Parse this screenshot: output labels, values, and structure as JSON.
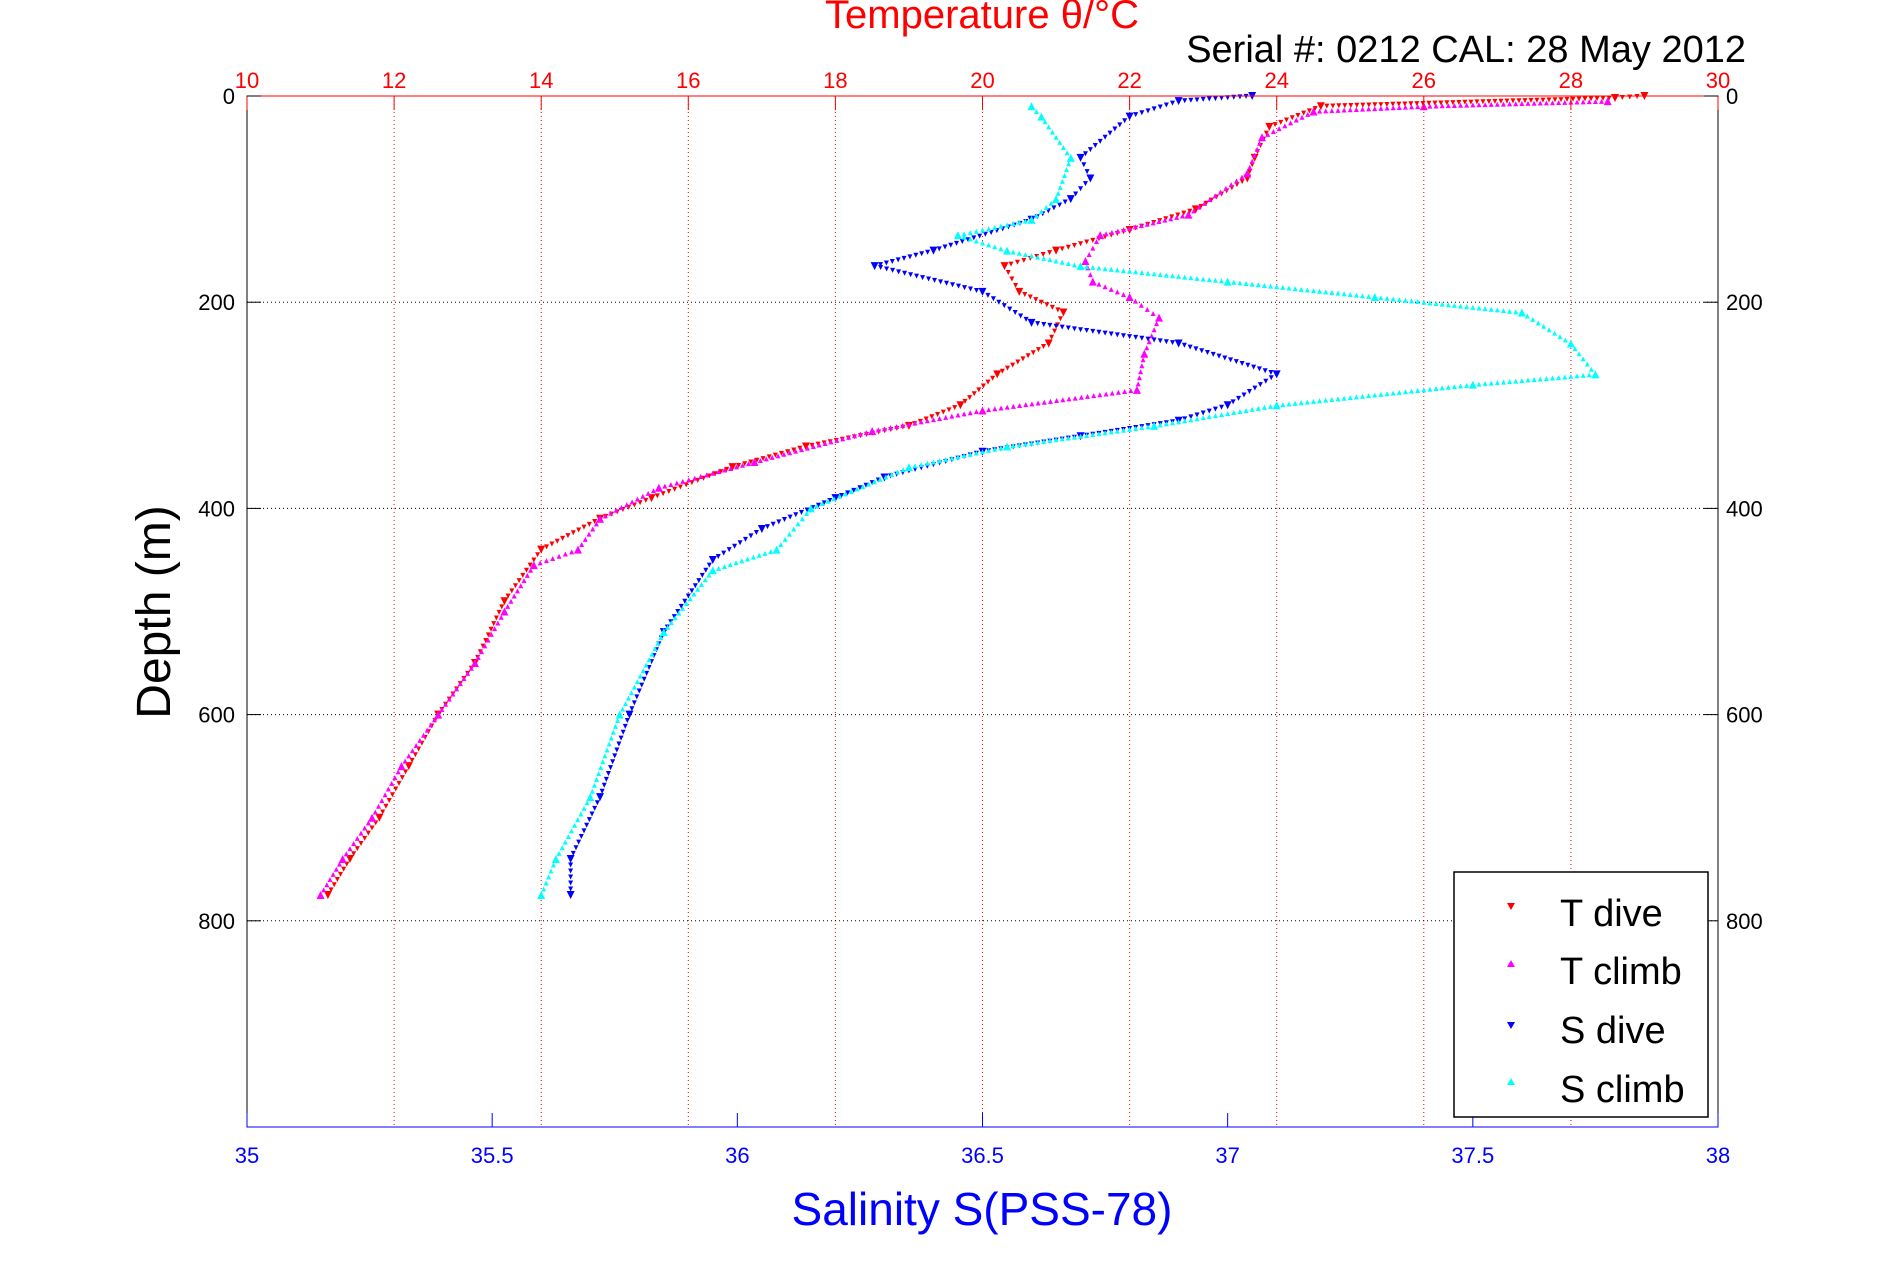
{
  "chart_data": {
    "type": "scatter",
    "title_top": "Temperature θ/°C",
    "subtitle": "Serial #: 0212  CAL: 28 May 2012",
    "ylabel": "Depth (m)",
    "xlabel_bottom": "Salinity S(PSS-78)",
    "y_axis": {
      "range": [
        0,
        1000
      ],
      "reversed": true,
      "ticks": [
        "0",
        "200",
        "400",
        "600",
        "800"
      ],
      "tick_values": [
        0,
        200,
        400,
        600,
        800
      ],
      "grid": true
    },
    "top_axis": {
      "quantity": "temperature",
      "range": [
        10,
        30
      ],
      "ticks": [
        "10",
        "12",
        "14",
        "16",
        "18",
        "20",
        "22",
        "24",
        "26",
        "28",
        "30"
      ],
      "tick_values": [
        10,
        12,
        14,
        16,
        18,
        20,
        22,
        24,
        26,
        28,
        30
      ],
      "grid": true,
      "color": "#ff0000"
    },
    "bottom_axis": {
      "quantity": "salinity",
      "range": [
        35,
        38
      ],
      "ticks": [
        "35",
        "35.5",
        "36",
        "36.5",
        "37",
        "37.5",
        "38"
      ],
      "tick_values": [
        35,
        35.5,
        36,
        36.5,
        37,
        37.5,
        38
      ],
      "color": "#0000ff"
    },
    "legend": {
      "position": "bottom-right",
      "entries": [
        "T dive",
        "T climb",
        "S dive",
        "S climb"
      ]
    },
    "series": [
      {
        "name": "T dive",
        "axis": "temperature",
        "color": "#ff0000",
        "marker": "triangle-down",
        "points": [
          [
            29.0,
            0
          ],
          [
            28.6,
            2
          ],
          [
            24.6,
            10
          ],
          [
            23.9,
            30
          ],
          [
            23.7,
            60
          ],
          [
            23.6,
            80
          ],
          [
            22.9,
            110
          ],
          [
            22.0,
            130
          ],
          [
            21.0,
            150
          ],
          [
            20.3,
            165
          ],
          [
            20.5,
            190
          ],
          [
            21.1,
            210
          ],
          [
            20.9,
            240
          ],
          [
            20.2,
            270
          ],
          [
            19.7,
            300
          ],
          [
            19.0,
            320
          ],
          [
            17.6,
            340
          ],
          [
            16.6,
            360
          ],
          [
            15.5,
            390
          ],
          [
            14.8,
            410
          ],
          [
            14.0,
            440
          ],
          [
            13.5,
            490
          ],
          [
            13.1,
            550
          ],
          [
            12.6,
            600
          ],
          [
            12.2,
            650
          ],
          [
            11.8,
            700
          ],
          [
            11.4,
            740
          ],
          [
            11.1,
            775
          ]
        ]
      },
      {
        "name": "T climb",
        "axis": "temperature",
        "color": "#ff00ff",
        "marker": "triangle-up",
        "points": [
          [
            11.0,
            775
          ],
          [
            11.3,
            740
          ],
          [
            11.7,
            700
          ],
          [
            12.1,
            650
          ],
          [
            12.6,
            600
          ],
          [
            13.1,
            550
          ],
          [
            13.5,
            500
          ],
          [
            13.9,
            455
          ],
          [
            14.5,
            440
          ],
          [
            14.8,
            410
          ],
          [
            15.6,
            380
          ],
          [
            16.9,
            355
          ],
          [
            18.5,
            325
          ],
          [
            20.0,
            305
          ],
          [
            22.1,
            285
          ],
          [
            22.2,
            250
          ],
          [
            22.4,
            215
          ],
          [
            22.0,
            195
          ],
          [
            21.5,
            180
          ],
          [
            21.4,
            160
          ],
          [
            21.6,
            135
          ],
          [
            22.8,
            115
          ],
          [
            23.6,
            75
          ],
          [
            23.8,
            40
          ],
          [
            24.5,
            15
          ],
          [
            26.0,
            10
          ],
          [
            28.5,
            5
          ]
        ]
      },
      {
        "name": "S dive",
        "axis": "salinity",
        "color": "#0000ff",
        "marker": "triangle-down",
        "points": [
          [
            37.05,
            0
          ],
          [
            36.9,
            5
          ],
          [
            36.8,
            20
          ],
          [
            36.7,
            60
          ],
          [
            36.72,
            80
          ],
          [
            36.68,
            100
          ],
          [
            36.6,
            120
          ],
          [
            36.4,
            150
          ],
          [
            36.28,
            165
          ],
          [
            36.5,
            190
          ],
          [
            36.6,
            220
          ],
          [
            36.9,
            240
          ],
          [
            37.1,
            270
          ],
          [
            37.0,
            300
          ],
          [
            36.9,
            315
          ],
          [
            36.7,
            330
          ],
          [
            36.5,
            345
          ],
          [
            36.3,
            370
          ],
          [
            36.2,
            390
          ],
          [
            36.05,
            420
          ],
          [
            35.95,
            450
          ],
          [
            35.85,
            520
          ],
          [
            35.78,
            600
          ],
          [
            35.72,
            680
          ],
          [
            35.66,
            740
          ],
          [
            35.66,
            775
          ]
        ]
      },
      {
        "name": "S climb",
        "axis": "salinity",
        "color": "#00ffff",
        "marker": "triangle-up",
        "points": [
          [
            35.6,
            775
          ],
          [
            35.63,
            740
          ],
          [
            35.7,
            680
          ],
          [
            35.76,
            600
          ],
          [
            35.85,
            520
          ],
          [
            35.95,
            460
          ],
          [
            36.08,
            440
          ],
          [
            36.15,
            400
          ],
          [
            36.35,
            360
          ],
          [
            36.55,
            340
          ],
          [
            36.85,
            320
          ],
          [
            37.1,
            300
          ],
          [
            37.5,
            280
          ],
          [
            37.75,
            270
          ],
          [
            37.7,
            240
          ],
          [
            37.6,
            210
          ],
          [
            37.3,
            195
          ],
          [
            37.0,
            180
          ],
          [
            36.7,
            165
          ],
          [
            36.55,
            150
          ],
          [
            36.45,
            135
          ],
          [
            36.6,
            120
          ],
          [
            36.65,
            100
          ],
          [
            36.68,
            60
          ],
          [
            36.62,
            20
          ],
          [
            36.6,
            10
          ]
        ]
      }
    ]
  }
}
